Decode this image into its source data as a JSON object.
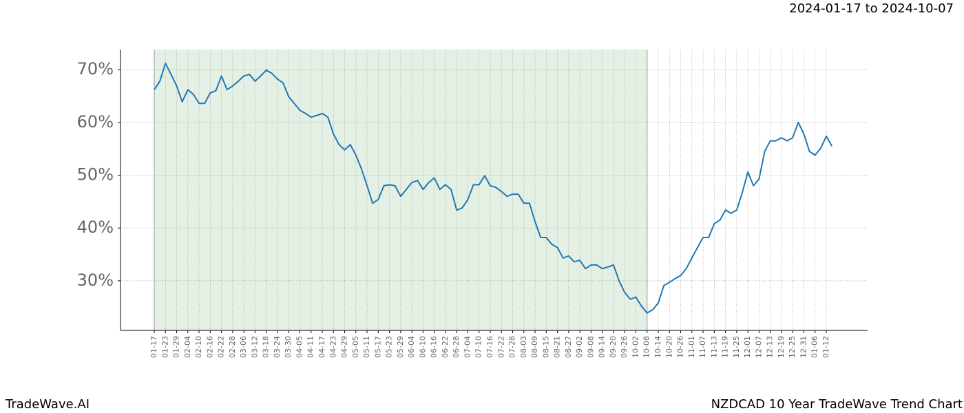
{
  "chart_data": {
    "type": "line",
    "title": "NZDCAD 10 Year TradeWave Trend Chart",
    "subtitle": "2024-01-17 to 2024-10-07",
    "brand": "TradeWave.AI",
    "categories": [
      "01-17",
      null,
      "01-23",
      null,
      "01-29",
      null,
      "02-04",
      null,
      "02-10",
      null,
      "02-16",
      null,
      "02-22",
      null,
      "02-28",
      null,
      "03-06",
      null,
      "03-12",
      null,
      "03-18",
      null,
      "03-24",
      null,
      "03-30",
      null,
      "04-05",
      null,
      "04-11",
      null,
      "04-17",
      null,
      "04-23",
      null,
      "04-29",
      null,
      "05-05",
      null,
      "05-11",
      null,
      "05-17",
      null,
      "05-23",
      null,
      "05-29",
      null,
      "06-04",
      null,
      "06-10",
      null,
      "06-16",
      null,
      "06-22",
      null,
      "06-28",
      null,
      "07-04",
      null,
      "07-10",
      null,
      "07-16",
      null,
      "07-22",
      null,
      "07-28",
      null,
      "08-03",
      null,
      "08-09",
      null,
      "08-15",
      null,
      "08-21",
      null,
      "08-27",
      null,
      "09-02",
      null,
      "09-08",
      null,
      "09-14",
      null,
      "09-20",
      null,
      "09-26",
      null,
      "10-02",
      null,
      "10-08",
      null,
      "10-14",
      null,
      "10-20",
      null,
      "10-26",
      null,
      "11-01",
      null,
      "11-07",
      null,
      "11-13",
      null,
      "11-19",
      null,
      "11-25",
      null,
      "12-01",
      null,
      "12-07",
      null,
      "12-13",
      null,
      "12-19",
      null,
      "12-25",
      null,
      "12-31",
      null,
      "01-06",
      null,
      "01-12",
      null
    ],
    "series": [
      {
        "color": "#1f77b4",
        "values": [
          66.2,
          67.8,
          71.2,
          69.1,
          66.9,
          63.9,
          66.2,
          65.3,
          63.6,
          63.6,
          65.6,
          66.0,
          68.8,
          66.2,
          66.9,
          67.8,
          68.8,
          69.1,
          67.8,
          68.8,
          69.9,
          69.3,
          68.2,
          67.5,
          64.9,
          63.6,
          62.3,
          61.7,
          61.0,
          61.3,
          61.7,
          61.0,
          57.8,
          55.8,
          54.8,
          55.8,
          53.8,
          51.2,
          48.0,
          44.7,
          45.4,
          48.0,
          48.2,
          48.0,
          46.0,
          47.3,
          48.6,
          49.0,
          47.3,
          48.6,
          49.5,
          47.3,
          48.2,
          47.3,
          43.4,
          43.8,
          45.4,
          48.2,
          48.2,
          49.9,
          48.0,
          47.7,
          46.9,
          46.0,
          46.4,
          46.4,
          44.7,
          44.7,
          41.2,
          38.2,
          38.2,
          36.9,
          36.3,
          34.3,
          34.7,
          33.6,
          33.9,
          32.3,
          33.0,
          33.0,
          32.3,
          32.6,
          33.0,
          30.0,
          27.8,
          26.5,
          26.9,
          25.2,
          23.9,
          24.5,
          25.8,
          29.1,
          29.7,
          30.4,
          31.0,
          32.3,
          34.3,
          36.3,
          38.2,
          38.2,
          40.8,
          41.5,
          43.4,
          42.8,
          43.4,
          46.7,
          50.6,
          48.0,
          49.3,
          54.5,
          56.5,
          56.5,
          57.1,
          56.5,
          57.1,
          60.0,
          57.8,
          54.5,
          53.8,
          55.1,
          57.4,
          55.5
        ]
      }
    ],
    "ylim": [
      20.6,
      73.8
    ],
    "yticks": [
      {
        "value": 30,
        "label": "30%"
      },
      {
        "value": 40,
        "label": "40%"
      },
      {
        "value": 50,
        "label": "50%"
      },
      {
        "value": 60,
        "label": "60%"
      },
      {
        "value": 70,
        "label": "70%"
      }
    ],
    "grid": true,
    "shaded_span": [
      "01-17",
      "10-08"
    ],
    "shade_color": "#e5f0e5"
  }
}
